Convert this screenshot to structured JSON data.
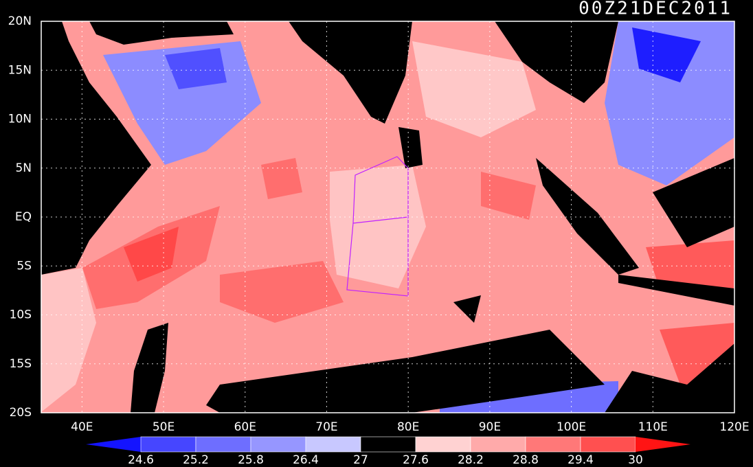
{
  "map": {
    "title": "00Z21DEC2011",
    "lonlim": [
      35,
      120
    ],
    "latlim": [
      -20,
      20
    ],
    "lon_ticks": [
      {
        "value": 40,
        "label": "40E"
      },
      {
        "value": 50,
        "label": "50E"
      },
      {
        "value": 60,
        "label": "60E"
      },
      {
        "value": 70,
        "label": "70E"
      },
      {
        "value": 80,
        "label": "80E"
      },
      {
        "value": 90,
        "label": "90E"
      },
      {
        "value": 100,
        "label": "100E"
      },
      {
        "value": 110,
        "label": "110E"
      },
      {
        "value": 120,
        "label": "120E"
      }
    ],
    "lat_ticks": [
      {
        "value": 20,
        "label": "20N"
      },
      {
        "value": 15,
        "label": "15N"
      },
      {
        "value": 10,
        "label": "10N"
      },
      {
        "value": 5,
        "label": "5N"
      },
      {
        "value": 0,
        "label": "EQ"
      },
      {
        "value": -5,
        "label": "5S"
      },
      {
        "value": -10,
        "label": "10S"
      },
      {
        "value": -15,
        "label": "15S"
      },
      {
        "value": -20,
        "label": "20S"
      }
    ],
    "grid": true,
    "colorbar": {
      "levels": [
        24.6,
        25.2,
        25.8,
        26.4,
        27,
        27.6,
        28.2,
        28.8,
        29.4,
        30
      ],
      "colors": [
        "#1414ff",
        "#4646ff",
        "#6e6eff",
        "#9696ff",
        "#c8c8ff",
        "#000000",
        "#ffd2d2",
        "#ffaaaa",
        "#ff7878",
        "#ff5050",
        "#ff1414"
      ]
    }
  }
}
